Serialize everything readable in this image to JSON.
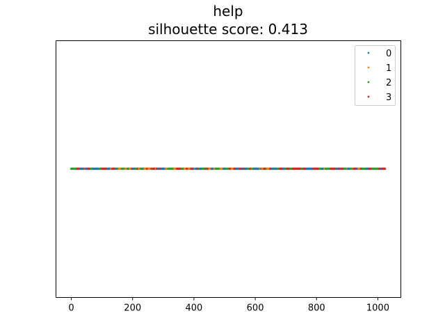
{
  "chart_data": {
    "type": "scatter",
    "title": "help",
    "subtitle": "silhouette score: 0.413",
    "xlabel": "",
    "ylabel": "",
    "xlim": [
      -50,
      1075
    ],
    "xticks": [
      0,
      200,
      400,
      600,
      800,
      1000
    ],
    "xtick_labels": [
      "0",
      "200",
      "400",
      "600",
      "800",
      "1000"
    ],
    "y_value": 0,
    "y_ticks_visible": false,
    "x_range": [
      0,
      1023
    ],
    "grid": false,
    "legend_position": "top-right",
    "series": [
      {
        "name": "0",
        "color": "#1f77b4"
      },
      {
        "name": "1",
        "color": "#ff7f0e"
      },
      {
        "name": "2",
        "color": "#2ca02c"
      },
      {
        "name": "3",
        "color": "#d62728"
      }
    ]
  }
}
